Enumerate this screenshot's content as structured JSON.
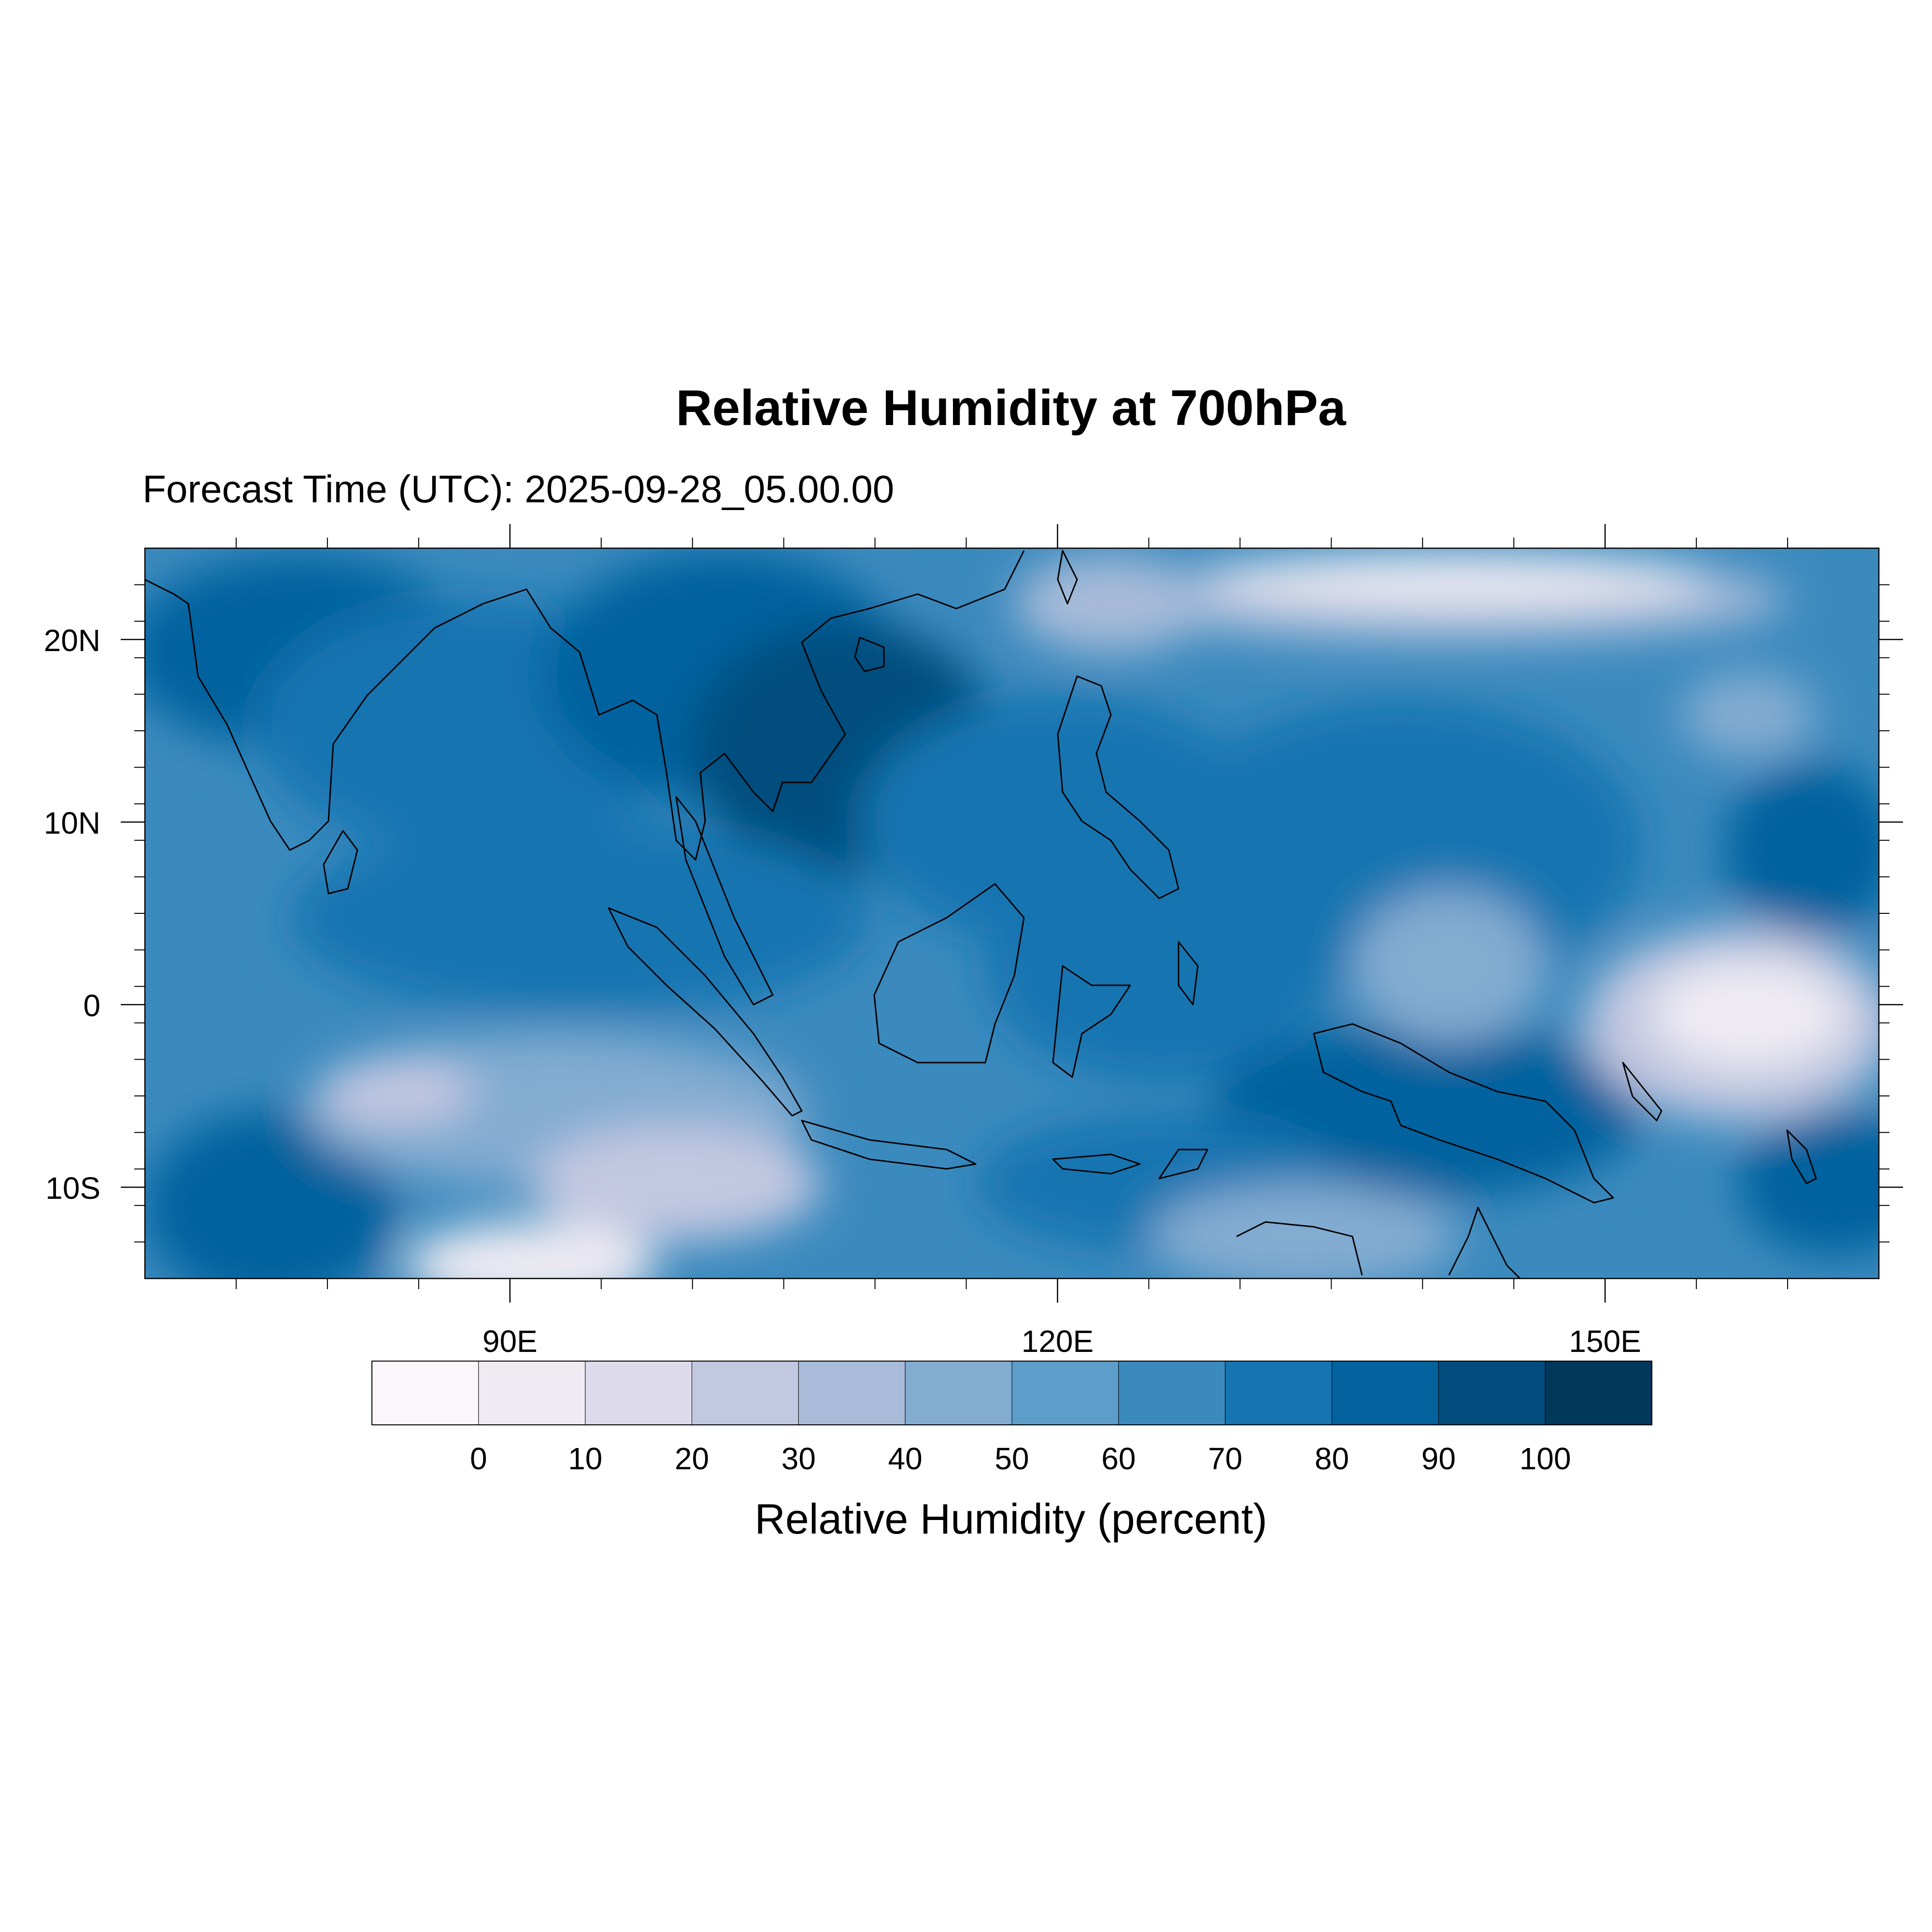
{
  "title": "Relative Humidity at 700hPa",
  "subtitle": "Forecast Time (UTC): 2025-09-28_05.00.00",
  "map": {
    "lon_range": [
      70,
      165
    ],
    "lat_range": [
      -15,
      25
    ],
    "lat_ticks": [
      {
        "value": 20,
        "label": "20N"
      },
      {
        "value": 10,
        "label": "10N"
      },
      {
        "value": 0,
        "label": "0"
      },
      {
        "value": -10,
        "label": "10S"
      }
    ],
    "lon_ticks": [
      {
        "value": 90,
        "label": "90E"
      },
      {
        "value": 120,
        "label": "120E"
      },
      {
        "value": 150,
        "label": "150E"
      }
    ],
    "lon_minor_step": 10,
    "lat_minor_step": 2
  },
  "colorbar": {
    "label": "Relative Humidity (percent)",
    "tick_labels": [
      "0",
      "10",
      "20",
      "30",
      "40",
      "50",
      "60",
      "70",
      "80",
      "90",
      "100"
    ],
    "colors": [
      "#fbf6fa",
      "#eeebf3",
      "#dcdaeb",
      "#c3c8e1",
      "#a8bbd9",
      "#83acd1",
      "#5d9dc9",
      "#3b8abe",
      "#1675b1",
      "#04629e",
      "#034d7e",
      "#02385a"
    ]
  }
}
